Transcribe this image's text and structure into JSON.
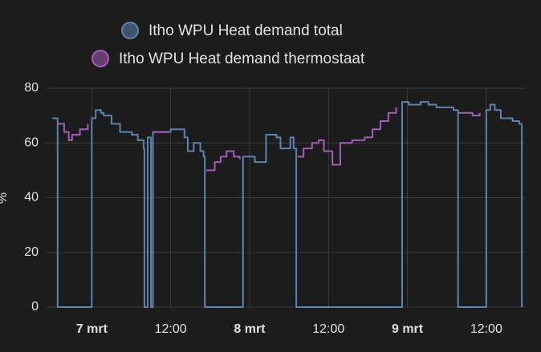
{
  "chart_data": {
    "type": "step-line",
    "y_label": "%",
    "xlim": [
      -7,
      66
    ],
    "ylim": [
      0,
      80
    ],
    "yticks": [
      0,
      20,
      40,
      60,
      80
    ],
    "xticks": [
      {
        "value": 0,
        "label": "7 mrt"
      },
      {
        "value": 12,
        "label": "12:00"
      },
      {
        "value": 24,
        "label": "8 mrt"
      },
      {
        "value": 36,
        "label": "12:00"
      },
      {
        "value": 48,
        "label": "9 mrt"
      },
      {
        "value": 60,
        "label": "12:00"
      }
    ],
    "grid": true,
    "series": [
      {
        "name": "Itho WPU Heat demand total",
        "color": "#5b84b1",
        "x": [
          -6,
          -5.2,
          0,
          0.6,
          1.4,
          1.8,
          3,
          4.3,
          6.1,
          7,
          7.9,
          8,
          8.5,
          9,
          9.3,
          12,
          14.1,
          14.6,
          15.5,
          16.5,
          17,
          17.2,
          23,
          24.8,
          26.5,
          28.1,
          28.7,
          30.2,
          30.7,
          31.1,
          47.2,
          48.2,
          50,
          51.2,
          52.4,
          55,
          55.7,
          60,
          60.6,
          61.3,
          62.2,
          64,
          65,
          65.4
        ],
        "values": [
          69,
          0,
          69,
          72,
          71,
          70,
          67,
          64,
          63,
          61,
          58,
          0,
          62,
          0,
          64,
          65,
          62,
          57,
          60,
          57,
          55,
          0,
          55,
          53,
          63,
          62,
          58,
          62,
          58,
          0,
          75,
          74,
          75,
          74,
          73,
          72,
          0,
          72,
          74,
          72,
          69,
          68,
          67,
          0
        ]
      },
      {
        "name": "Itho WPU Heat demand thermostaat",
        "color": "#a45db8",
        "x": [
          -5.2,
          -4.2,
          -3.5,
          -3,
          -1.8,
          -0.6,
          0,
          7.1,
          7.9,
          9.3,
          11.7,
          12,
          17.4,
          18.7,
          19.6,
          20.5,
          21.6,
          22.5,
          23,
          31.3,
          32.2,
          33.5,
          34.5,
          35.3,
          36.6,
          37.8,
          39.6,
          41.5,
          42.7,
          43.9,
          45.1,
          46.3,
          47.2,
          55.7,
          57.9,
          59,
          60
        ],
        "values": [
          67,
          64,
          61,
          63,
          65,
          67,
          null,
          58,
          null,
          64,
          64,
          null,
          50,
          53,
          55,
          57,
          55,
          54,
          null,
          55,
          58,
          60,
          61,
          57,
          52,
          60,
          61,
          62,
          65,
          68,
          71,
          73,
          null,
          71,
          70,
          71,
          null
        ]
      }
    ]
  }
}
